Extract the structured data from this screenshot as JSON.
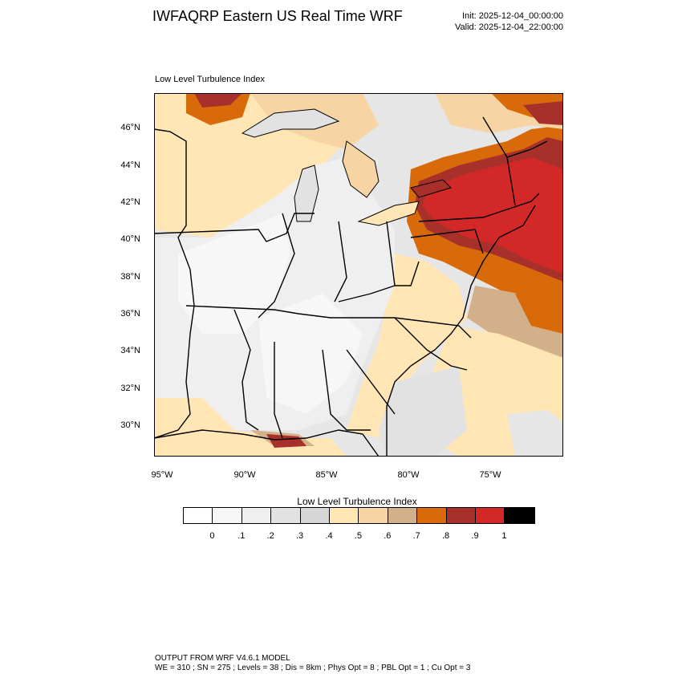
{
  "header": {
    "title": "IWFAQRP Eastern US Real Time WRF",
    "init": "Init: 2025-12-04_00:00:00",
    "valid": "Valid: 2025-12-04_22:00:00"
  },
  "map": {
    "subtitle": "Low Level Turbulence Index",
    "lat_labels": [
      "46°N",
      "44°N",
      "42°N",
      "40°N",
      "38°N",
      "36°N",
      "34°N",
      "32°N",
      "30°N"
    ],
    "lon_labels": [
      "95°W",
      "90°W",
      "85°W",
      "80°W",
      "75°W"
    ]
  },
  "colorbar": {
    "title": "Low Level Turbulence Index",
    "colors": [
      "#ffffff",
      "#f7f7f7",
      "#efefef",
      "#e2e2e2",
      "#d6d6d6",
      "#ffe6b4",
      "#f6d4a4",
      "#d2b08a",
      "#d96a0a",
      "#a8302a",
      "#d32828",
      "#000000"
    ],
    "ticks": [
      "0",
      ".1",
      ".2",
      ".3",
      ".4",
      ".5",
      ".6",
      ".7",
      ".8",
      ".9",
      "1"
    ]
  },
  "footer": {
    "line1": "OUTPUT FROM WRF V4.6.1 MODEL",
    "line2": "WE = 310 ; SN = 275 ; Levels = 38 ; Dis = 8km ; Phys Opt = 8 ; PBL Opt = 1 ; Cu Opt = 3"
  }
}
